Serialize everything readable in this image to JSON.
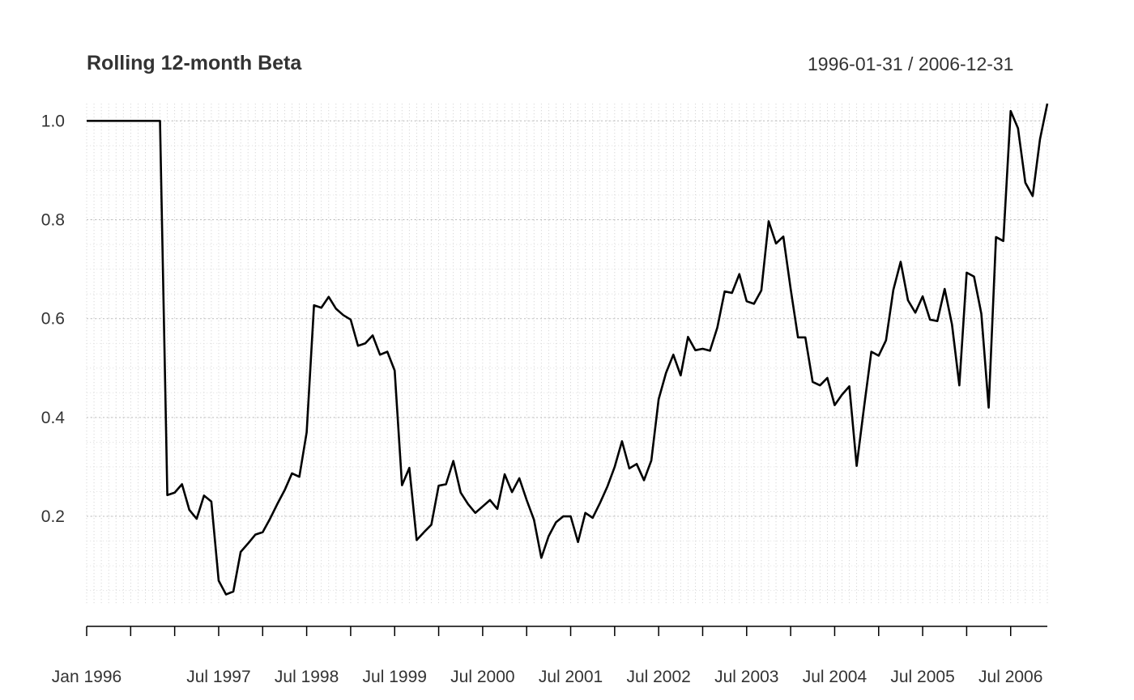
{
  "chart_data": {
    "type": "line",
    "title": "Rolling 12-month Beta",
    "date_range_label": "1996-01-31 / 2006-12-31",
    "xlabel": "",
    "ylabel": "",
    "ylim": [
      0.02,
      1.035
    ],
    "yticks": [
      0.2,
      0.4,
      0.6,
      0.8,
      1.0
    ],
    "ytick_labels": [
      "0.2",
      "0.4",
      "0.6",
      "0.8",
      "1.0"
    ],
    "xtick_labels": [
      {
        "date": "1996-01",
        "label": "Jan 1996"
      },
      {
        "date": "1997-07",
        "label": "Jul 1997"
      },
      {
        "date": "1998-07",
        "label": "Jul 1998"
      },
      {
        "date": "1999-07",
        "label": "Jul 1999"
      },
      {
        "date": "2000-07",
        "label": "Jul 2000"
      },
      {
        "date": "2001-07",
        "label": "Jul 2001"
      },
      {
        "date": "2002-07",
        "label": "Jul 2002"
      },
      {
        "date": "2003-07",
        "label": "Jul 2003"
      },
      {
        "date": "2004-07",
        "label": "Jul 2004"
      },
      {
        "date": "2005-07",
        "label": "Jul 2005"
      },
      {
        "date": "2006-07",
        "label": "Jul 2006"
      }
    ],
    "grid": true,
    "line_color": "#000000",
    "x": [
      "1996-01",
      "1996-02",
      "1996-03",
      "1996-04",
      "1996-05",
      "1996-06",
      "1996-07",
      "1996-08",
      "1996-09",
      "1996-10",
      "1996-11",
      "1996-12",
      "1997-01",
      "1997-02",
      "1997-03",
      "1997-04",
      "1997-05",
      "1997-06",
      "1997-07",
      "1997-08",
      "1997-09",
      "1997-10",
      "1997-11",
      "1997-12",
      "1998-01",
      "1998-02",
      "1998-03",
      "1998-04",
      "1998-05",
      "1998-06",
      "1998-07",
      "1998-08",
      "1998-09",
      "1998-10",
      "1998-11",
      "1998-12",
      "1999-01",
      "1999-02",
      "1999-03",
      "1999-04",
      "1999-05",
      "1999-06",
      "1999-07",
      "1999-08",
      "1999-09",
      "1999-10",
      "1999-11",
      "1999-12",
      "2000-01",
      "2000-02",
      "2000-03",
      "2000-04",
      "2000-05",
      "2000-06",
      "2000-07",
      "2000-08",
      "2000-09",
      "2000-10",
      "2000-11",
      "2000-12",
      "2001-01",
      "2001-02",
      "2001-03",
      "2001-04",
      "2001-05",
      "2001-06",
      "2001-07",
      "2001-08",
      "2001-09",
      "2001-10",
      "2001-11",
      "2001-12",
      "2002-01",
      "2002-02",
      "2002-03",
      "2002-04",
      "2002-05",
      "2002-06",
      "2002-07",
      "2002-08",
      "2002-09",
      "2002-10",
      "2002-11",
      "2002-12",
      "2003-01",
      "2003-02",
      "2003-03",
      "2003-04",
      "2003-05",
      "2003-06",
      "2003-07",
      "2003-08",
      "2003-09",
      "2003-10",
      "2003-11",
      "2003-12",
      "2004-01",
      "2004-02",
      "2004-03",
      "2004-04",
      "2004-05",
      "2004-06",
      "2004-07",
      "2004-08",
      "2004-09",
      "2004-10",
      "2004-11",
      "2004-12",
      "2005-01",
      "2005-02",
      "2005-03",
      "2005-04",
      "2005-05",
      "2005-06",
      "2005-07",
      "2005-08",
      "2005-09",
      "2005-10",
      "2005-11",
      "2005-12",
      "2006-01",
      "2006-02",
      "2006-03",
      "2006-04",
      "2006-05",
      "2006-06",
      "2006-07",
      "2006-08",
      "2006-09",
      "2006-10",
      "2006-11",
      "2006-12"
    ],
    "series": [
      {
        "values": [
          1.0,
          1.0,
          1.0,
          1.0,
          1.0,
          1.0,
          1.0,
          1.0,
          1.0,
          1.0,
          1.0,
          0.243,
          0.248,
          0.265,
          0.213,
          0.195,
          0.242,
          0.23,
          0.07,
          0.042,
          0.048,
          0.128,
          0.145,
          0.163,
          0.168,
          0.195,
          0.225,
          0.253,
          0.287,
          0.28,
          0.37,
          0.627,
          0.622,
          0.644,
          0.62,
          0.607,
          0.598,
          0.545,
          0.55,
          0.566,
          0.527,
          0.533,
          0.495,
          0.263,
          0.298,
          0.152,
          0.168,
          0.183,
          0.262,
          0.265,
          0.312,
          0.248,
          0.225,
          0.207,
          0.22,
          0.233,
          0.215,
          0.285,
          0.249,
          0.277,
          0.233,
          0.193,
          0.116,
          0.16,
          0.188,
          0.2,
          0.2,
          0.148,
          0.207,
          0.197,
          0.227,
          0.26,
          0.3,
          0.352,
          0.297,
          0.306,
          0.273,
          0.313,
          0.437,
          0.49,
          0.527,
          0.485,
          0.563,
          0.536,
          0.539,
          0.535,
          0.582,
          0.655,
          0.652,
          0.69,
          0.635,
          0.63,
          0.657,
          0.797,
          0.752,
          0.766,
          0.66,
          0.562,
          0.562,
          0.472,
          0.465,
          0.48,
          0.425,
          0.446,
          0.463,
          0.302,
          0.42,
          0.533,
          0.525,
          0.556,
          0.658,
          0.715,
          0.637,
          0.612,
          0.645,
          0.598,
          0.595,
          0.66,
          0.588,
          0.465,
          0.693,
          0.685,
          0.61,
          0.42,
          0.765,
          0.757,
          1.02,
          0.985,
          0.875,
          0.848,
          0.963,
          1.035
        ]
      }
    ]
  }
}
